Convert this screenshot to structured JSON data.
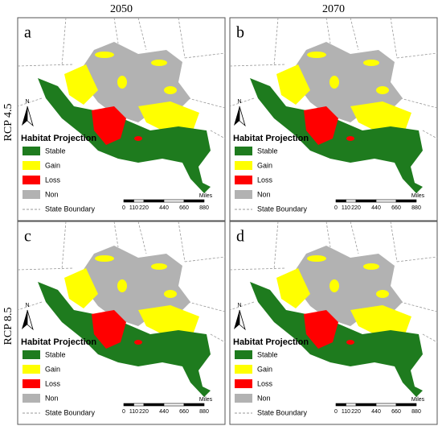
{
  "columns": [
    "2050",
    "2070"
  ],
  "rows": [
    "RCP 4.5",
    "RCP 8.5"
  ],
  "panels": [
    {
      "letter": "a"
    },
    {
      "letter": "b"
    },
    {
      "letter": "c"
    },
    {
      "letter": "d"
    }
  ],
  "north": "N",
  "legend": {
    "title": "Habitat Projection",
    "items": [
      {
        "label": "Stable",
        "color": "#1e7b1e"
      },
      {
        "label": "Gain",
        "color": "#ffff00"
      },
      {
        "label": "Loss",
        "color": "#ff0000"
      },
      {
        "label": "Non",
        "color": "#b2b2b2"
      }
    ],
    "boundary": "State Boundary"
  },
  "scale": {
    "unit": "Miles",
    "ticks": [
      0,
      110,
      220,
      440,
      660,
      880
    ]
  }
}
